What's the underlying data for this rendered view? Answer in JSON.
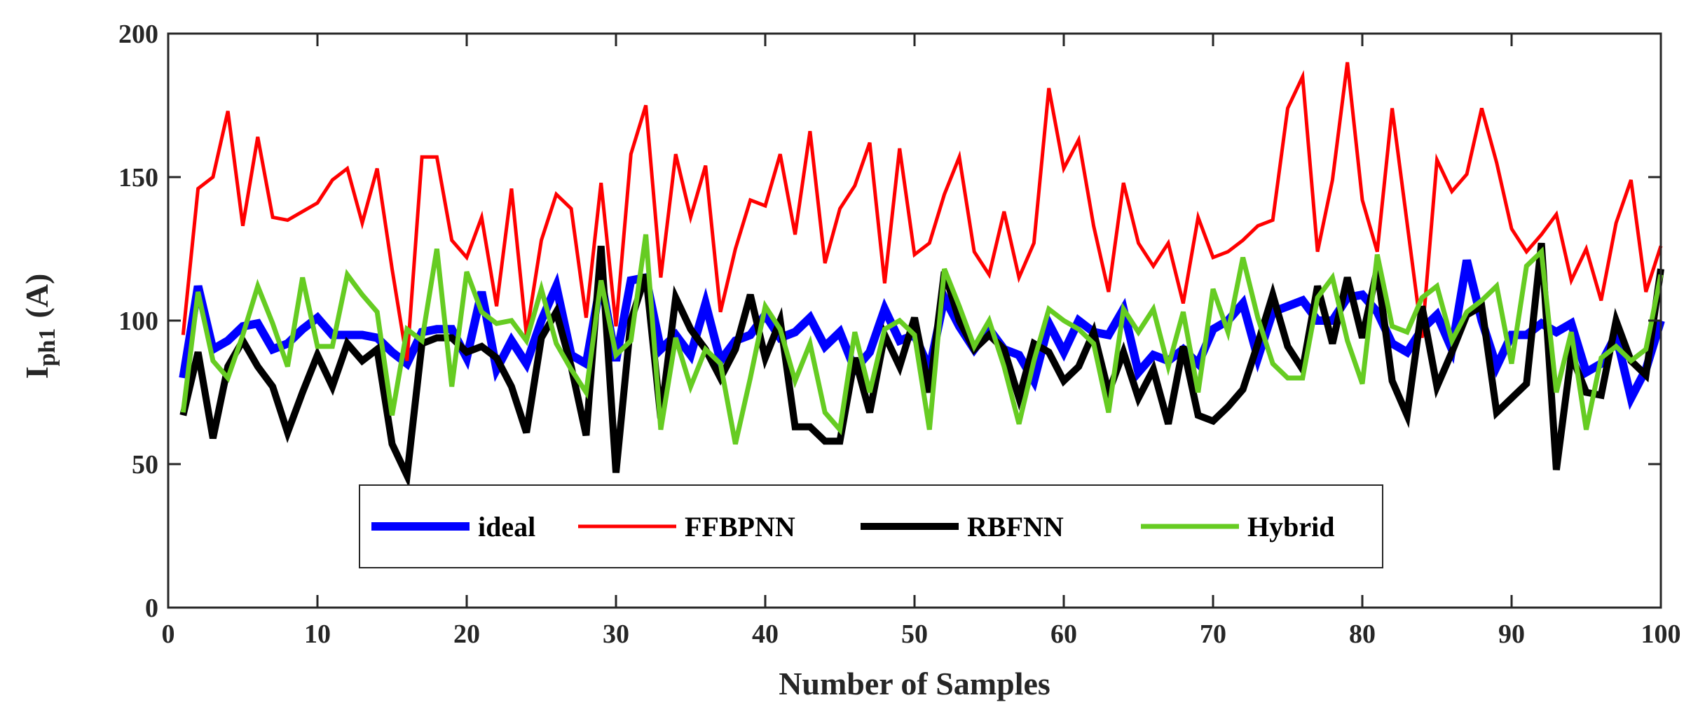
{
  "chart_data": {
    "type": "line",
    "title": "",
    "xlabel": "Number of Samples",
    "ylabel": "I",
    "ylabel_subscript": "ph1",
    "ylabel_unit": "(A)",
    "xlim": [
      0,
      100
    ],
    "ylim": [
      0,
      200
    ],
    "xticks": [
      "0",
      "10",
      "20",
      "30",
      "40",
      "50",
      "60",
      "70",
      "80",
      "90",
      "100"
    ],
    "yticks": [
      "0",
      "50",
      "100",
      "150",
      "200"
    ],
    "grid": false,
    "legend_position": "bottom-center",
    "x": [
      1,
      2,
      3,
      4,
      5,
      6,
      7,
      8,
      9,
      10,
      11,
      12,
      13,
      14,
      15,
      16,
      17,
      18,
      19,
      20,
      21,
      22,
      23,
      24,
      25,
      26,
      27,
      28,
      29,
      30,
      31,
      32,
      33,
      34,
      35,
      36,
      37,
      38,
      39,
      40,
      41,
      42,
      43,
      44,
      45,
      46,
      47,
      48,
      49,
      50,
      51,
      52,
      53,
      54,
      55,
      56,
      57,
      58,
      59,
      60,
      61,
      62,
      63,
      64,
      65,
      66,
      67,
      68,
      69,
      70,
      71,
      72,
      73,
      74,
      75,
      76,
      77,
      78,
      79,
      80,
      81,
      82,
      83,
      84,
      85,
      86,
      87,
      88,
      89,
      90,
      91,
      92,
      93,
      94,
      95,
      96,
      97,
      98,
      99,
      100
    ],
    "series": [
      {
        "name": "ideal",
        "color": "#0000ff",
        "values": [
          80,
          112,
          90,
          93,
          98,
          99,
          90,
          92,
          97,
          101,
          95,
          95,
          95,
          94,
          89,
          85,
          96,
          97,
          97,
          87,
          110,
          83,
          93,
          85,
          100,
          112,
          88,
          85,
          114,
          86,
          114,
          115,
          90,
          95,
          88,
          106,
          86,
          93,
          95,
          102,
          94,
          96,
          101,
          91,
          96,
          83,
          89,
          104,
          93,
          95,
          83,
          108,
          98,
          90,
          97,
          90,
          88,
          79,
          99,
          89,
          100,
          96,
          95,
          104,
          82,
          88,
          86,
          90,
          85,
          97,
          100,
          106,
          87,
          103,
          105,
          107,
          100,
          100,
          108,
          109,
          103,
          92,
          89,
          97,
          102,
          90,
          121,
          100,
          84,
          95,
          95,
          99,
          96,
          99,
          82,
          85,
          95,
          73,
          83,
          100
        ]
      },
      {
        "name": "FFBPNN",
        "color": "#ff0000",
        "values": [
          95,
          146,
          150,
          173,
          133,
          164,
          136,
          135,
          138,
          141,
          149,
          153,
          134,
          153,
          118,
          86,
          157,
          157,
          128,
          122,
          136,
          105,
          146,
          95,
          128,
          144,
          139,
          101,
          148,
          98,
          158,
          175,
          115,
          158,
          136,
          154,
          103,
          125,
          142,
          140,
          158,
          130,
          166,
          120,
          139,
          147,
          162,
          113,
          160,
          123,
          127,
          144,
          157,
          124,
          116,
          138,
          115,
          127,
          181,
          153,
          163,
          133,
          110,
          148,
          127,
          119,
          127,
          106,
          136,
          122,
          124,
          128,
          133,
          135,
          174,
          185,
          124,
          149,
          190,
          142,
          124,
          174,
          134,
          94,
          156,
          145,
          151,
          174,
          155,
          132,
          124,
          130,
          137,
          114,
          125,
          107,
          134,
          149,
          110,
          126
        ]
      },
      {
        "name": "RBFNN",
        "color": "#000000",
        "values": [
          67,
          89,
          59,
          84,
          93,
          84,
          77,
          61,
          75,
          88,
          77,
          92,
          86,
          90,
          57,
          46,
          92,
          94,
          94,
          89,
          91,
          87,
          77,
          61,
          94,
          103,
          84,
          60,
          126,
          47,
          100,
          116,
          66,
          108,
          97,
          90,
          80,
          90,
          109,
          87,
          100,
          63,
          63,
          58,
          58,
          87,
          68,
          95,
          84,
          101,
          75,
          117,
          100,
          90,
          95,
          90,
          73,
          92,
          89,
          79,
          84,
          96,
          75,
          89,
          73,
          83,
          64,
          91,
          67,
          65,
          70,
          76,
          92,
          109,
          91,
          83,
          112,
          92,
          115,
          94,
          118,
          79,
          67,
          105,
          77,
          89,
          102,
          105,
          68,
          73,
          78,
          127,
          48,
          88,
          75,
          74,
          100,
          86,
          81,
          118
        ]
      },
      {
        "name": "Hybrid",
        "color": "#66cc22",
        "values": [
          68,
          110,
          86,
          80,
          95,
          112,
          99,
          84,
          115,
          91,
          91,
          116,
          109,
          103,
          67,
          97,
          93,
          125,
          77,
          117,
          103,
          99,
          100,
          93,
          111,
          92,
          83,
          75,
          114,
          88,
          93,
          130,
          62,
          94,
          77,
          90,
          85,
          57,
          80,
          105,
          97,
          79,
          92,
          68,
          62,
          96,
          75,
          97,
          100,
          95,
          62,
          118,
          105,
          91,
          100,
          84,
          64,
          86,
          104,
          100,
          97,
          92,
          68,
          104,
          96,
          104,
          84,
          103,
          75,
          111,
          96,
          122,
          101,
          85,
          80,
          80,
          108,
          115,
          93,
          78,
          123,
          98,
          96,
          108,
          112,
          93,
          103,
          107,
          112,
          85,
          119,
          124,
          75,
          96,
          62,
          87,
          91,
          86,
          90,
          116
        ]
      }
    ]
  }
}
